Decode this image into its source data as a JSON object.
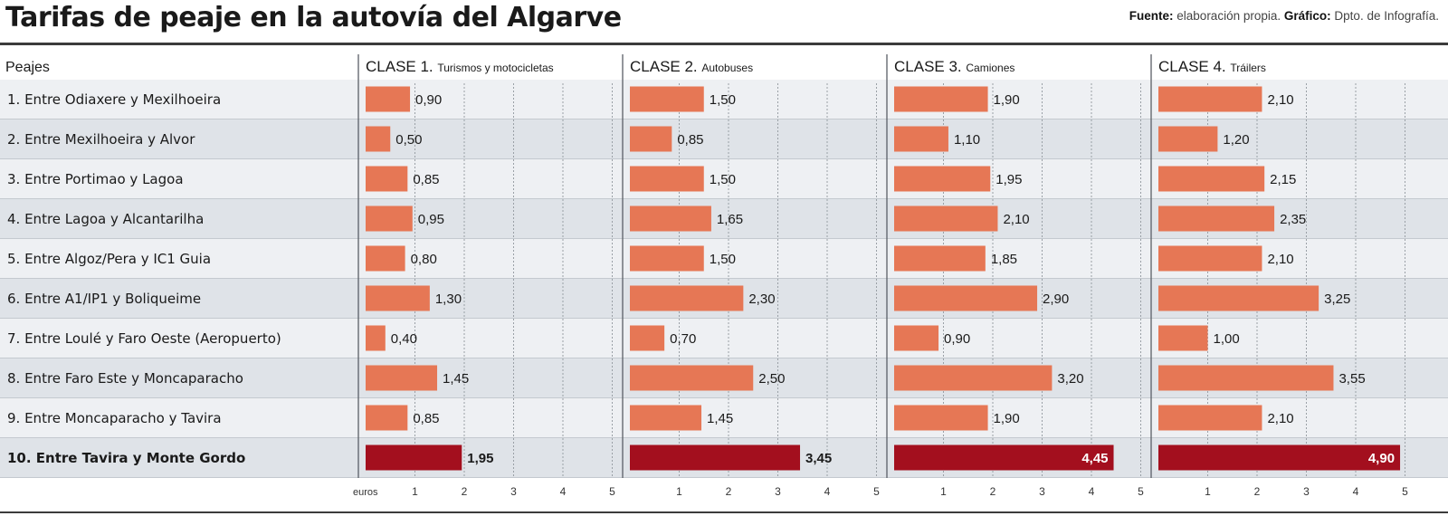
{
  "header": {
    "title": "Tarifas de peaje en la autovía del Algarve",
    "credit_source_label": "Fuente:",
    "credit_source_value": "elaboración propia.",
    "credit_graphic_label": "Gráfico:",
    "credit_graphic_value": "Dpto. de Infografía."
  },
  "chart_data": {
    "type": "bar",
    "orientation": "horizontal",
    "row_header": "Peajes",
    "categories": [
      "1. Entre Odiaxere y Mexilhoeira",
      "2. Entre Mexilhoeira y Alvor",
      "3. Entre Portimao y Lagoa",
      "4. Entre Lagoa y Alcantarilha",
      "5. Entre Algoz/Pera y IC1 Guia",
      "6. Entre A1/IP1 y Boliqueime",
      "7. Entre Loulé y Faro Oeste (Aeropuerto)",
      "8. Entre Faro Este y Moncaparacho",
      "9. Entre Moncaparacho y Tavira",
      "10. Entre Tavira y Monte Gordo"
    ],
    "series": [
      {
        "name": "CLASE 1.",
        "subtitle": "Turismos y motocicletas",
        "values": [
          0.9,
          0.5,
          0.85,
          0.95,
          0.8,
          1.3,
          0.4,
          1.45,
          0.85,
          1.95
        ],
        "labels": [
          "0,90",
          "0,50",
          "0,85",
          "0,95",
          "0,80",
          "1,30",
          "0,40",
          "1,45",
          "0,85",
          "1,95"
        ]
      },
      {
        "name": "CLASE 2.",
        "subtitle": "Autobuses",
        "values": [
          1.5,
          0.85,
          1.5,
          1.65,
          1.5,
          2.3,
          0.7,
          2.5,
          1.45,
          3.45
        ],
        "labels": [
          "1,50",
          "0,85",
          "1,50",
          "1,65",
          "1,50",
          "2,30",
          "0,70",
          "2,50",
          "1,45",
          "3,45"
        ]
      },
      {
        "name": "CLASE 3.",
        "subtitle": "Camiones",
        "values": [
          1.9,
          1.1,
          1.95,
          2.1,
          1.85,
          2.9,
          0.9,
          3.2,
          1.9,
          4.45
        ],
        "labels": [
          "1,90",
          "1,10",
          "1,95",
          "2,10",
          "1,85",
          "2,90",
          "0,90",
          "3,20",
          "1,90",
          "4,45"
        ]
      },
      {
        "name": "CLASE 4.",
        "subtitle": "Tráilers",
        "values": [
          2.1,
          1.2,
          2.15,
          2.35,
          2.1,
          3.25,
          1.0,
          3.55,
          2.1,
          4.9
        ],
        "labels": [
          "2,10",
          "1,20",
          "2,15",
          "2,35",
          "2,10",
          "3,25",
          "1,00",
          "3,55",
          "2,10",
          "4,90"
        ]
      }
    ],
    "xlim": [
      0,
      5
    ],
    "x_ticks": [
      "1",
      "2",
      "3",
      "4",
      "5"
    ],
    "x_unit": "euros",
    "highlight_row": 9,
    "grid": true,
    "colors": {
      "bar": "#e67755",
      "bar_total": "#a30f1e",
      "row_alt": "#dfe3e8",
      "row": "#eef0f3",
      "grid": "#9aa0a6"
    }
  }
}
